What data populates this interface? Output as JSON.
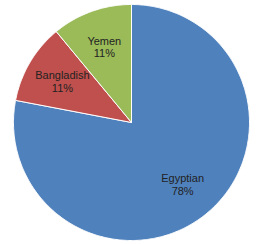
{
  "chart_data": {
    "type": "pie",
    "categories": [
      "Egyptian",
      "Bangladish",
      "Yemen"
    ],
    "values": [
      78,
      11,
      11
    ],
    "value_labels": [
      "78%",
      "11%",
      "11%"
    ],
    "colors": [
      "#4f81bd",
      "#c0504d",
      "#9bbb59"
    ],
    "data_labels": true
  }
}
